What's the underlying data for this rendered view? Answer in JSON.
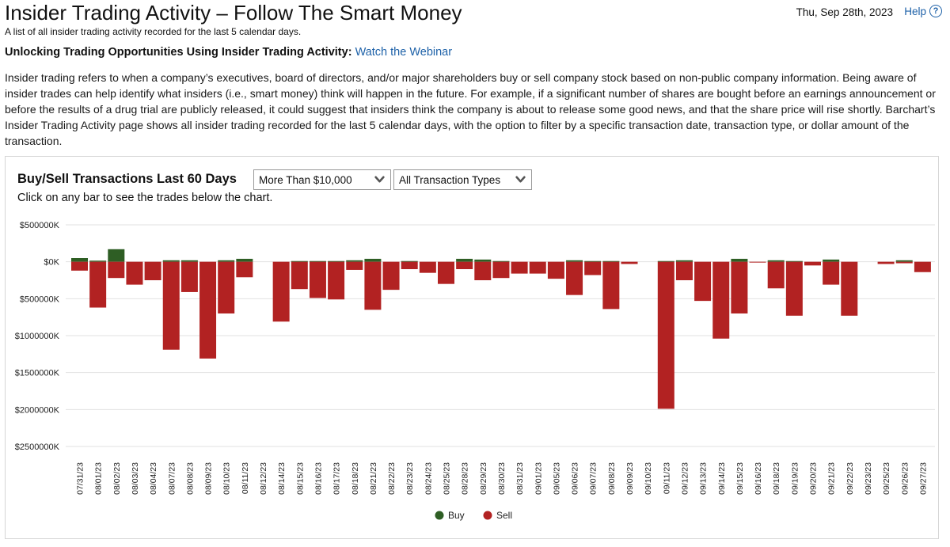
{
  "header": {
    "title": "Insider Trading Activity – Follow The Smart Money",
    "subtitle": "A list of all insider trading activity recorded for the last 5 calendar days.",
    "date": "Thu, Sep 28th, 2023",
    "help_label": "Help",
    "help_icon": "question-circle-icon"
  },
  "promo": {
    "label": "Unlocking Trading Opportunities Using Insider Trading Activity:",
    "link_text": "Watch the Webinar"
  },
  "description": "Insider trading refers to when a company’s executives, board of directors, and/or major shareholders buy or sell company stock based on non-public company information. Being aware of insider trades can help identify what insiders (i.e., smart money) think will happen in the future. For example, if a significant number of shares are bought before an earnings announcement or before the results of a drug trial are publicly released, it could suggest that insiders think the company is about to release some good news, and that the share price will rise shortly. Barchart’s Insider Trading Activity page shows all insider trading recorded for the last 5 calendar days, with the option to filter by a specific transaction date, transaction type, or dollar amount of the transaction.",
  "panel": {
    "title": "Buy/Sell Transactions Last 60 Days",
    "hint": "Click on any bar to see the trades below the chart.",
    "amount_filter": "More Than $10,000",
    "type_filter": "All Transaction Types"
  },
  "colors": {
    "buy": "#2e5e24",
    "sell": "#b22222",
    "grid": "#e2e2e2",
    "link": "#1d61a8"
  },
  "chart_data": {
    "type": "bar",
    "title": "Buy/Sell Transactions Last 60 Days",
    "xlabel": "",
    "ylabel": "",
    "ylim": [
      -2500000,
      500000
    ],
    "y_ticks": [
      500000,
      0,
      -500000,
      -1000000,
      -1500000,
      -2000000,
      -2500000
    ],
    "y_tick_labels": [
      "$500000K",
      "$0K",
      "$500000K",
      "$1000000K",
      "$1500000K",
      "$2000000K",
      "$2500000K"
    ],
    "categories": [
      "07/31/23",
      "08/01/23",
      "08/02/23",
      "08/03/23",
      "08/04/23",
      "08/07/23",
      "08/08/23",
      "08/09/23",
      "08/10/23",
      "08/11/23",
      "08/12/23",
      "08/14/23",
      "08/15/23",
      "08/16/23",
      "08/17/23",
      "08/18/23",
      "08/21/23",
      "08/22/23",
      "08/23/23",
      "08/24/23",
      "08/25/23",
      "08/28/23",
      "08/29/23",
      "08/30/23",
      "08/31/23",
      "09/01/23",
      "09/05/23",
      "09/06/23",
      "09/07/23",
      "09/08/23",
      "09/09/23",
      "09/10/23",
      "09/11/23",
      "09/12/23",
      "09/13/23",
      "09/14/23",
      "09/15/23",
      "09/16/23",
      "09/18/23",
      "09/19/23",
      "09/20/23",
      "09/21/23",
      "09/22/23",
      "09/23/23",
      "09/25/23",
      "09/26/23",
      "09/27/23"
    ],
    "series": [
      {
        "name": "Buy",
        "color": "#2e5e24",
        "values": [
          50000,
          15000,
          170000,
          0,
          0,
          20000,
          20000,
          0,
          20000,
          40000,
          0,
          0,
          10000,
          10000,
          10000,
          20000,
          40000,
          0,
          10000,
          0,
          0,
          40000,
          30000,
          10000,
          0,
          0,
          0,
          20000,
          10000,
          10000,
          0,
          0,
          10000,
          20000,
          0,
          0,
          40000,
          0,
          20000,
          10000,
          0,
          30000,
          0,
          0,
          0,
          20000,
          0
        ]
      },
      {
        "name": "Sell",
        "color": "#b22222",
        "values": [
          -120000,
          -620000,
          -220000,
          -310000,
          -250000,
          -1190000,
          -410000,
          -1310000,
          -700000,
          -210000,
          0,
          -810000,
          -370000,
          -490000,
          -510000,
          -110000,
          -650000,
          -380000,
          -100000,
          -150000,
          -300000,
          -100000,
          -250000,
          -220000,
          -160000,
          -160000,
          -230000,
          -450000,
          -180000,
          -640000,
          -30000,
          0,
          -1990000,
          -250000,
          -530000,
          -1040000,
          -700000,
          -10000,
          -360000,
          -730000,
          -50000,
          -310000,
          -730000,
          0,
          -30000,
          -20000,
          -140000
        ]
      }
    ],
    "legend": [
      "Buy",
      "Sell"
    ],
    "legend_position": "bottom-center"
  }
}
